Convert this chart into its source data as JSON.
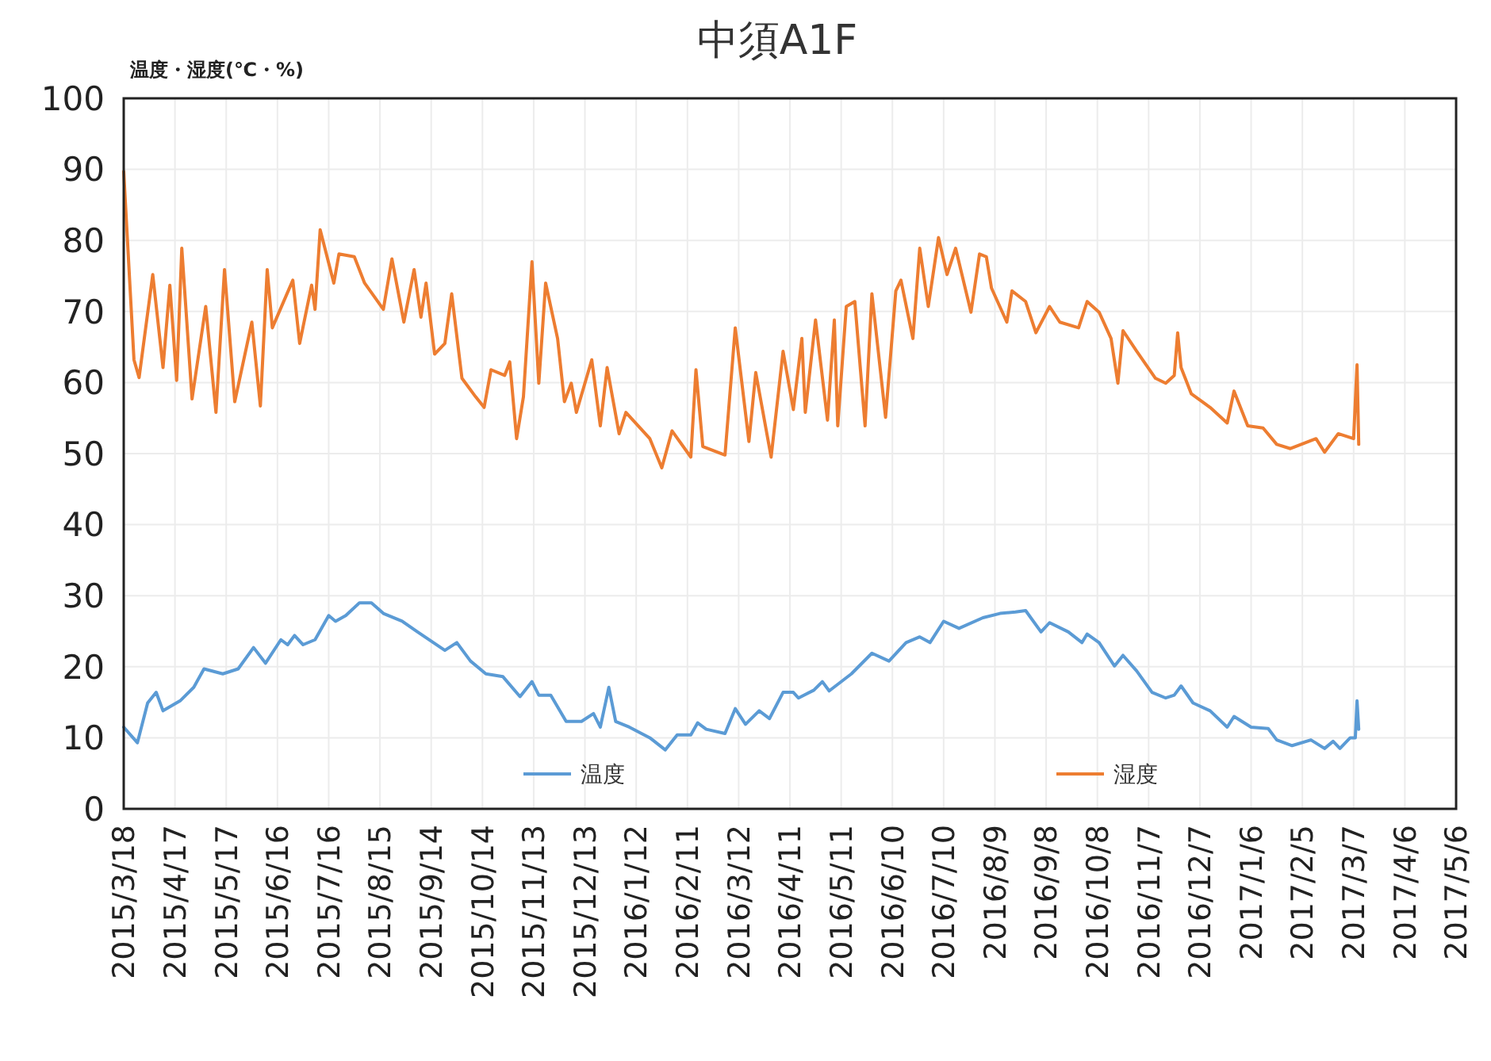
{
  "chart_data": {
    "type": "line",
    "title": "中須A1F",
    "ylabel": "温度・湿度(℃・%)",
    "ylim": [
      0,
      100
    ],
    "yticks": [
      0,
      10,
      20,
      30,
      40,
      50,
      60,
      70,
      80,
      90,
      100
    ],
    "grid": true,
    "legend": "bottom",
    "line_style": "solid",
    "marker": "none",
    "xlim": [
      "2015-03-18",
      "2017-05-06"
    ],
    "xticks": [
      {
        "value": "2015-03-18",
        "label": "2015/3/18"
      },
      {
        "value": "2015-04-17",
        "label": "2015/4/17"
      },
      {
        "value": "2015-05-17",
        "label": "2015/5/17"
      },
      {
        "value": "2015-06-16",
        "label": "2015/6/16"
      },
      {
        "value": "2015-07-16",
        "label": "2015/7/16"
      },
      {
        "value": "2015-08-15",
        "label": "2015/8/15"
      },
      {
        "value": "2015-09-14",
        "label": "2015/9/14"
      },
      {
        "value": "2015-10-14",
        "label": "2015/10/14"
      },
      {
        "value": "2015-11-13",
        "label": "2015/11/13"
      },
      {
        "value": "2015-12-13",
        "label": "2015/12/13"
      },
      {
        "value": "2016-01-12",
        "label": "2016/1/12"
      },
      {
        "value": "2016-02-11",
        "label": "2016/2/11"
      },
      {
        "value": "2016-03-12",
        "label": "2016/3/12"
      },
      {
        "value": "2016-04-11",
        "label": "2016/4/11"
      },
      {
        "value": "2016-05-11",
        "label": "2016/5/11"
      },
      {
        "value": "2016-06-10",
        "label": "2016/6/10"
      },
      {
        "value": "2016-07-10",
        "label": "2016/7/10"
      },
      {
        "value": "2016-08-09",
        "label": "2016/8/9"
      },
      {
        "value": "2016-09-08",
        "label": "2016/9/8"
      },
      {
        "value": "2016-10-08",
        "label": "2016/10/8"
      },
      {
        "value": "2016-11-07",
        "label": "2016/11/7"
      },
      {
        "value": "2016-12-07",
        "label": "2016/12/7"
      },
      {
        "value": "2017-01-06",
        "label": "2017/1/6"
      },
      {
        "value": "2017-02-05",
        "label": "2017/2/5"
      },
      {
        "value": "2017-03-07",
        "label": "2017/3/7"
      },
      {
        "value": "2017-04-06",
        "label": "2017/4/6"
      },
      {
        "value": "2017-05-06",
        "label": "2017/5/6"
      }
    ],
    "series": [
      {
        "name": "温度",
        "color": "#5b9bd5",
        "x": [
          "2015-03-18",
          "2015-03-26",
          "2015-04-01",
          "2015-04-06",
          "2015-04-10",
          "2015-04-20",
          "2015-04-28",
          "2015-05-04",
          "2015-05-15",
          "2015-05-24",
          "2015-06-02",
          "2015-06-09",
          "2015-06-18",
          "2015-06-22",
          "2015-06-26",
          "2015-07-01",
          "2015-07-08",
          "2015-07-16",
          "2015-07-20",
          "2015-07-26",
          "2015-08-03",
          "2015-08-10",
          "2015-08-17",
          "2015-08-28",
          "2015-09-06",
          "2015-09-22",
          "2015-09-29",
          "2015-10-07",
          "2015-10-16",
          "2015-10-26",
          "2015-11-05",
          "2015-11-12",
          "2015-11-16",
          "2015-11-23",
          "2015-12-02",
          "2015-12-11",
          "2015-12-18",
          "2015-12-22",
          "2015-12-27",
          "2015-12-31",
          "2016-01-08",
          "2016-01-20",
          "2016-01-29",
          "2016-02-05",
          "2016-02-13",
          "2016-02-17",
          "2016-02-22",
          "2016-03-04",
          "2016-03-10",
          "2016-03-16",
          "2016-03-24",
          "2016-03-30",
          "2016-04-07",
          "2016-04-13",
          "2016-04-16",
          "2016-04-25",
          "2016-04-30",
          "2016-05-04",
          "2016-05-17",
          "2016-05-29",
          "2016-06-08",
          "2016-06-18",
          "2016-06-26",
          "2016-07-02",
          "2016-07-10",
          "2016-07-19",
          "2016-08-02",
          "2016-08-12",
          "2016-08-21",
          "2016-08-27",
          "2016-09-05",
          "2016-09-10",
          "2016-09-21",
          "2016-09-29",
          "2016-10-02",
          "2016-10-09",
          "2016-10-18",
          "2016-10-23",
          "2016-10-31",
          "2016-11-09",
          "2016-11-17",
          "2016-11-22",
          "2016-11-26",
          "2016-12-03",
          "2016-12-13",
          "2016-12-23",
          "2016-12-27",
          "2017-01-06",
          "2017-01-16",
          "2017-01-21",
          "2017-01-30",
          "2017-02-10",
          "2017-02-18",
          "2017-02-23",
          "2017-02-27",
          "2017-03-05",
          "2017-03-08",
          "2017-03-09",
          "2017-03-10"
        ],
        "values": [
          11.5,
          9.3,
          14.9,
          16.4,
          13.8,
          15.2,
          17.1,
          19.7,
          19.0,
          19.7,
          22.7,
          20.5,
          23.8,
          23.1,
          24.4,
          23.1,
          23.8,
          27.2,
          26.4,
          27.2,
          29.0,
          29.0,
          27.5,
          26.4,
          24.9,
          22.3,
          23.4,
          20.8,
          19.0,
          18.6,
          15.8,
          17.9,
          16.0,
          16.0,
          12.3,
          12.3,
          13.4,
          11.5,
          17.1,
          12.3,
          11.5,
          10.0,
          8.3,
          10.4,
          10.4,
          12.1,
          11.2,
          10.6,
          14.1,
          11.9,
          13.8,
          12.7,
          16.4,
          16.4,
          15.6,
          16.7,
          17.9,
          16.6,
          19.0,
          21.9,
          20.8,
          23.4,
          24.2,
          23.4,
          26.4,
          25.4,
          26.9,
          27.5,
          27.7,
          27.9,
          24.9,
          26.2,
          24.9,
          23.4,
          24.6,
          23.4,
          20.1,
          21.6,
          19.4,
          16.4,
          15.6,
          16.0,
          17.3,
          14.9,
          13.8,
          11.5,
          13.0,
          11.5,
          11.3,
          9.7,
          8.9,
          9.7,
          8.5,
          9.5,
          8.5,
          10.0,
          10.0,
          15.2,
          11.2
        ]
      },
      {
        "name": "湿度",
        "color": "#ed7d31",
        "x": [
          "2015-03-18",
          "2015-03-24",
          "2015-03-27",
          "2015-04-04",
          "2015-04-10",
          "2015-04-14",
          "2015-04-18",
          "2015-04-21",
          "2015-04-27",
          "2015-05-05",
          "2015-05-11",
          "2015-05-16",
          "2015-05-22",
          "2015-06-01",
          "2015-06-06",
          "2015-06-10",
          "2015-06-13",
          "2015-06-25",
          "2015-06-29",
          "2015-07-06",
          "2015-07-08",
          "2015-07-11",
          "2015-07-19",
          "2015-07-22",
          "2015-07-31",
          "2015-08-06",
          "2015-08-17",
          "2015-08-22",
          "2015-08-29",
          "2015-09-04",
          "2015-09-08",
          "2015-09-11",
          "2015-09-16",
          "2015-09-22",
          "2015-09-26",
          "2015-10-02",
          "2015-10-10",
          "2015-10-15",
          "2015-10-19",
          "2015-10-27",
          "2015-10-30",
          "2015-11-03",
          "2015-11-07",
          "2015-11-12",
          "2015-11-16",
          "2015-11-20",
          "2015-11-27",
          "2015-12-01",
          "2015-12-05",
          "2015-12-08",
          "2015-12-17",
          "2015-12-22",
          "2015-12-26",
          "2016-01-02",
          "2016-01-06",
          "2016-01-20",
          "2016-01-27",
          "2016-02-02",
          "2016-02-13",
          "2016-02-16",
          "2016-02-20",
          "2016-03-04",
          "2016-03-10",
          "2016-03-18",
          "2016-03-22",
          "2016-03-31",
          "2016-04-07",
          "2016-04-13",
          "2016-04-18",
          "2016-04-20",
          "2016-04-26",
          "2016-05-03",
          "2016-05-07",
          "2016-05-09",
          "2016-05-14",
          "2016-05-19",
          "2016-05-25",
          "2016-05-29",
          "2016-06-06",
          "2016-06-12",
          "2016-06-15",
          "2016-06-22",
          "2016-06-26",
          "2016-07-01",
          "2016-07-07",
          "2016-07-12",
          "2016-07-17",
          "2016-07-26",
          "2016-07-31",
          "2016-08-04",
          "2016-08-07",
          "2016-08-16",
          "2016-08-19",
          "2016-08-27",
          "2016-09-02",
          "2016-09-10",
          "2016-09-16",
          "2016-09-27",
          "2016-10-02",
          "2016-10-09",
          "2016-10-16",
          "2016-10-20",
          "2016-10-23",
          "2016-10-31",
          "2016-11-11",
          "2016-11-17",
          "2016-11-22",
          "2016-11-24",
          "2016-11-26",
          "2016-12-02",
          "2016-12-13",
          "2016-12-23",
          "2016-12-27",
          "2017-01-04",
          "2017-01-13",
          "2017-01-21",
          "2017-01-29",
          "2017-02-13",
          "2017-02-18",
          "2017-02-26",
          "2017-03-07",
          "2017-03-09",
          "2017-03-10"
        ],
        "values": [
          89.7,
          63.2,
          60.7,
          75.2,
          62.1,
          73.7,
          60.3,
          78.9,
          57.7,
          70.7,
          55.8,
          75.9,
          57.3,
          68.5,
          56.7,
          75.9,
          67.7,
          74.4,
          65.5,
          73.7,
          70.3,
          81.5,
          74.0,
          78.1,
          77.7,
          74.0,
          70.3,
          77.4,
          68.5,
          75.9,
          69.2,
          74.0,
          64.0,
          65.5,
          72.5,
          60.6,
          58.0,
          56.5,
          61.8,
          61.0,
          62.9,
          52.1,
          58.0,
          77.0,
          59.9,
          74.0,
          66.2,
          57.3,
          59.9,
          55.8,
          63.2,
          53.9,
          62.1,
          52.8,
          55.8,
          52.1,
          48.0,
          53.2,
          49.5,
          61.8,
          51.0,
          49.8,
          67.7,
          51.7,
          61.4,
          49.5,
          64.4,
          56.2,
          66.2,
          55.8,
          68.8,
          54.7,
          68.8,
          53.9,
          70.7,
          71.4,
          53.9,
          72.5,
          55.1,
          72.9,
          74.4,
          66.2,
          78.9,
          70.7,
          80.4,
          75.2,
          78.9,
          69.9,
          78.1,
          77.7,
          73.3,
          68.5,
          72.9,
          71.4,
          67.0,
          70.7,
          68.5,
          67.7,
          71.4,
          69.9,
          66.2,
          59.9,
          67.3,
          64.4,
          60.6,
          59.9,
          61.0,
          67.0,
          62.1,
          58.4,
          56.5,
          54.3,
          58.8,
          53.9,
          53.6,
          51.3,
          50.7,
          52.1,
          50.2,
          52.8,
          52.1,
          62.5,
          51.3
        ]
      }
    ]
  }
}
